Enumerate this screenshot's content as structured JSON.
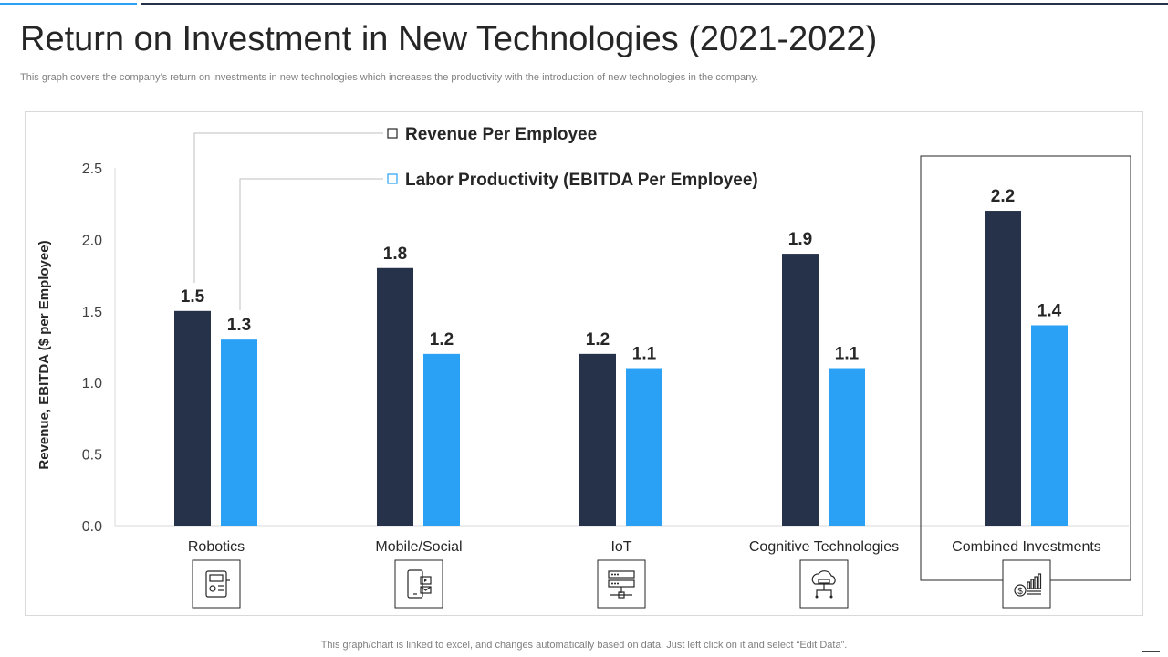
{
  "page": {
    "title": "Return on Investment in New Technologies (2021-2022)",
    "subtitle": "This graph covers the company’s return on investments in new technologies which increases the productivity with the introduction of new technologies in the company.",
    "footer": "This graph/chart is linked to excel,  and changes automatically based on data. Just left click on it and select “Edit Data”."
  },
  "colors": {
    "revenue": "#26324a",
    "labor": "#2aa1f4",
    "axis": "#d9d9d9",
    "text": "#262626",
    "highlight_border": "#262626"
  },
  "chart_data": {
    "type": "bar",
    "title": "Return on Investment in New Technologies (2021-2022)",
    "xlabel": "",
    "ylabel": "Revenue, EBITDA ($ per Employee)",
    "ylim": [
      0,
      2.5
    ],
    "yticks": [
      "0.0",
      "0.5",
      "1.0",
      "1.5",
      "2.0",
      "2.5"
    ],
    "grid": false,
    "legend_position": "top",
    "categories": [
      "Robotics",
      "Mobile/Social",
      "IoT",
      "Cognitive Technologies",
      "Combined Investments"
    ],
    "category_icons": [
      "robotics-icon",
      "mobile-social-icon",
      "iot-icon",
      "cloud-computing-icon",
      "investment-growth-icon"
    ],
    "highlighted_category": "Combined Investments",
    "series": [
      {
        "name": "Revenue Per Employee",
        "values": [
          1.5,
          1.8,
          1.2,
          1.9,
          2.2
        ],
        "labels": [
          "1.5",
          "1.8",
          "1.2",
          "1.9",
          "2.2"
        ]
      },
      {
        "name": "Labor Productivity (EBITDA Per Employee)",
        "values": [
          1.3,
          1.2,
          1.1,
          1.1,
          1.4
        ],
        "labels": [
          "1.3",
          "1.2",
          "1.1",
          "1.1",
          "1.4"
        ]
      }
    ]
  }
}
